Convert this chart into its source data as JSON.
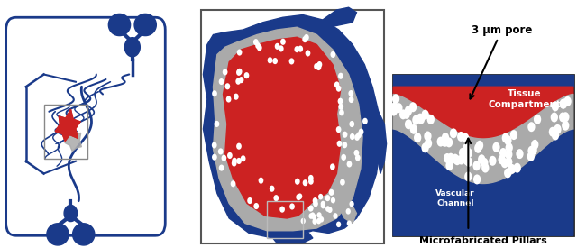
{
  "bg_color": "#ffffff",
  "blue": "#1a3a8a",
  "red": "#cc2222",
  "gray": "#aaaaaa",
  "white": "#ffffff",
  "label_3um": "3 μm pore",
  "label_tissue": "Tissue\nCompartment",
  "label_vascular": "Vascular\nChannel",
  "label_pillars": "Microfabricated Pillars",
  "fig_width": 6.4,
  "fig_height": 2.75
}
